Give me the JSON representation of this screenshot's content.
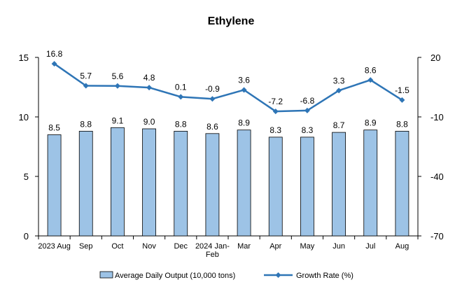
{
  "chart_data": {
    "type": "bar",
    "title": "Ethylene",
    "categories": [
      "2023 Aug",
      "Sep",
      "Oct",
      "Nov",
      "Dec",
      "2024 Jan-Feb",
      "Mar",
      "Apr",
      "May",
      "Jun",
      "Jul",
      "Aug"
    ],
    "category_lines": [
      [
        "2023 Aug"
      ],
      [
        "Sep"
      ],
      [
        "Oct"
      ],
      [
        "Nov"
      ],
      [
        "Dec"
      ],
      [
        "2024 Jan-",
        "Feb"
      ],
      [
        "Mar"
      ],
      [
        "Apr"
      ],
      [
        "May"
      ],
      [
        "Jun"
      ],
      [
        "Jul"
      ],
      [
        "Aug"
      ]
    ],
    "series": [
      {
        "name": "Average Daily Output (10,000 tons)",
        "type": "bar",
        "axis": "left",
        "values": [
          8.5,
          8.8,
          9.1,
          9.0,
          8.8,
          8.6,
          8.9,
          8.3,
          8.3,
          8.7,
          8.9,
          8.8
        ],
        "labels": [
          "8.5",
          "8.8",
          "9.1",
          "9.0",
          "8.8",
          "8.6",
          "8.9",
          "8.3",
          "8.3",
          "8.7",
          "8.9",
          "8.8"
        ],
        "color": "#9DC3E6",
        "border": "#000000"
      },
      {
        "name": "Growth Rate (%)",
        "type": "line",
        "axis": "right",
        "values": [
          16.8,
          5.7,
          5.6,
          4.8,
          0.1,
          -0.9,
          3.6,
          -7.2,
          -6.8,
          3.3,
          8.6,
          -1.5
        ],
        "labels": [
          "16.8",
          "5.7",
          "5.6",
          "4.8",
          "0.1",
          "-0.9",
          "3.6",
          "-7.2",
          "-6.8",
          "3.3",
          "8.6",
          "-1.5"
        ],
        "color": "#2E75B6"
      }
    ],
    "y_left": {
      "range": [
        0,
        15
      ],
      "ticks": [
        0,
        5,
        10,
        15
      ]
    },
    "y_right": {
      "range": [
        -70,
        20
      ],
      "ticks": [
        -70,
        -40,
        -10,
        20
      ]
    },
    "grid": false,
    "legend_position": "bottom"
  }
}
